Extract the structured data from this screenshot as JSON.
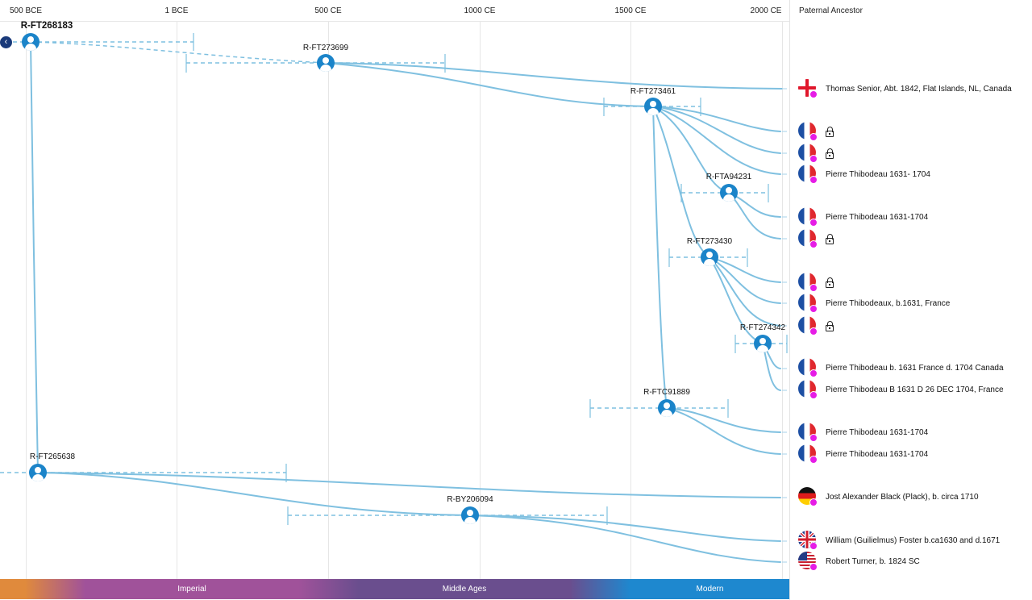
{
  "timeline": {
    "axis_labels": [
      "500 BCE",
      "1 BCE",
      "500 CE",
      "1000 CE",
      "1500 CE",
      "2000 CE"
    ]
  },
  "sidebar": {
    "header": "Paternal Ancestor"
  },
  "nodes": {
    "root": "R-FT268183",
    "n1": "R-FT273699",
    "n2": "R-FT273461",
    "n3": "R-FTA94231",
    "n4": "R-FT273430",
    "n5": "R-FT274342",
    "n6": "R-FTC91889",
    "n7": "R-FT265638",
    "n8": "R-BY206094"
  },
  "ancestors": [
    {
      "text": "Thomas Senior, Abt. 1842, Flat Islands, NL, Canada",
      "flag": "england",
      "locked": false
    },
    {
      "text": "",
      "flag": "france",
      "locked": true
    },
    {
      "text": "",
      "flag": "france",
      "locked": true
    },
    {
      "text": "Pierre Thibodeau 1631- 1704",
      "flag": "france",
      "locked": false
    },
    {
      "text": "Pierre Thibodeau 1631-1704",
      "flag": "france",
      "locked": false
    },
    {
      "text": "",
      "flag": "france",
      "locked": true
    },
    {
      "text": "",
      "flag": "france",
      "locked": true
    },
    {
      "text": "Pierre Thibodeaux, b.1631, France",
      "flag": "france",
      "locked": false
    },
    {
      "text": "",
      "flag": "france",
      "locked": true
    },
    {
      "text": "Pierre Thibodeau b. 1631 France d. 1704 Canada",
      "flag": "france",
      "locked": false
    },
    {
      "text": "Pierre Thibodeau B 1631 D 26 DEC 1704, France",
      "flag": "france",
      "locked": false
    },
    {
      "text": "Pierre Thibodeau 1631-1704",
      "flag": "france",
      "locked": false
    },
    {
      "text": "Pierre Thibodeau 1631-1704",
      "flag": "france",
      "locked": false
    },
    {
      "text": "Jost Alexander Black (Plack), b. circa 1710",
      "flag": "germany",
      "locked": false
    },
    {
      "text": "William (Guilielmus) Foster b.ca1630 and d.1671",
      "flag": "uk",
      "locked": false
    },
    {
      "text": "Robert Turner, b. 1824 SC",
      "flag": "usa",
      "locked": false
    }
  ],
  "eras": {
    "imperial": "Imperial",
    "middle_ages": "Middle Ages",
    "modern": "Modern"
  },
  "colors": {
    "node": "#1b84c9",
    "branch": "#7fc0e0",
    "marker": "#e61ce6",
    "era_ancient": "#e08a3c",
    "era_imperial": "#a0529a",
    "era_middle": "#6a4e8e",
    "era_modern": "#1e88cf"
  }
}
